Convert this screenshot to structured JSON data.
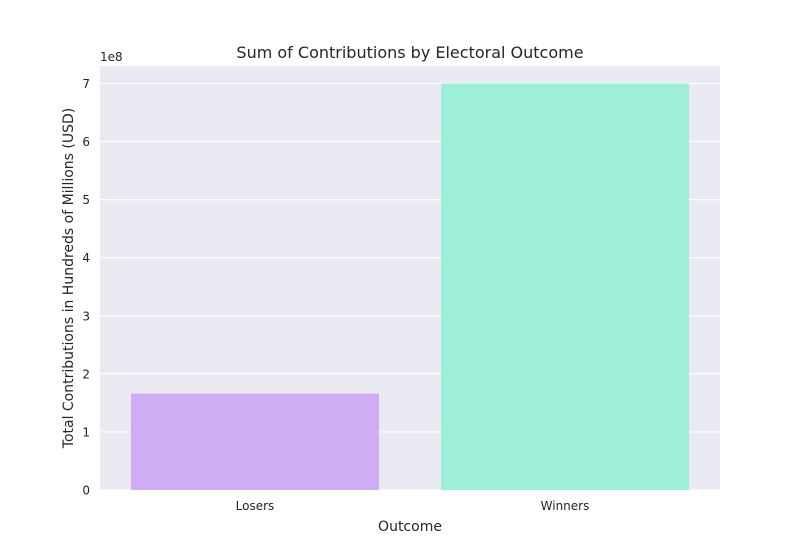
{
  "chart_data": {
    "type": "bar",
    "title": "Sum of Contributions by Electoral Outcome",
    "xlabel": "Outcome",
    "ylabel": "Total Contributions in Hundreds of Millions (USD)",
    "y_offset_label": "1e8",
    "categories": [
      "Losers",
      "Winners"
    ],
    "values": [
      166000000,
      700000000
    ],
    "colors": [
      "#cfacf4",
      "#9df0d7"
    ],
    "ylim": [
      0,
      730000000
    ],
    "yticks": [
      {
        "value": 0,
        "label": "0"
      },
      {
        "value": 100000000,
        "label": "1"
      },
      {
        "value": 200000000,
        "label": "2"
      },
      {
        "value": 300000000,
        "label": "3"
      },
      {
        "value": 400000000,
        "label": "4"
      },
      {
        "value": 500000000,
        "label": "5"
      },
      {
        "value": 600000000,
        "label": "6"
      },
      {
        "value": 700000000,
        "label": "7"
      }
    ],
    "grid": true,
    "background_color": "#eaeaf2",
    "grid_color": "#ffffff"
  }
}
